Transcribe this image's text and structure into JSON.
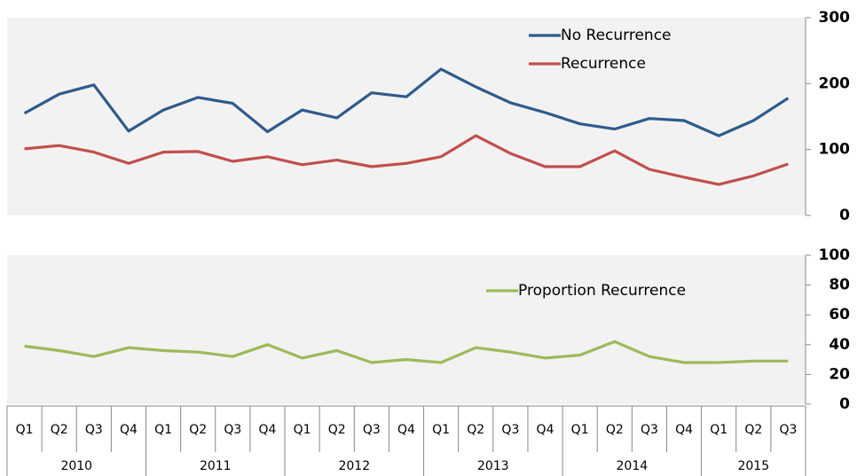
{
  "chart_data": [
    {
      "type": "line",
      "ylim": [
        0,
        300
      ],
      "yticks": [
        0,
        100,
        200,
        300
      ],
      "series": [
        {
          "name": "No Recurrence",
          "color": "#2f5b8c",
          "values": [
            155,
            184,
            198,
            128,
            160,
            179,
            170,
            127,
            160,
            148,
            186,
            180,
            222,
            195,
            171,
            156,
            139,
            131,
            147,
            144,
            121,
            144,
            178
          ]
        },
        {
          "name": "Recurrence",
          "color": "#c0504d",
          "values": [
            101,
            106,
            96,
            79,
            96,
            97,
            82,
            89,
            77,
            84,
            74,
            79,
            89,
            121,
            94,
            74,
            74,
            98,
            70,
            58,
            47,
            60,
            78
          ]
        }
      ]
    },
    {
      "type": "line",
      "ylim": [
        0,
        100
      ],
      "yticks": [
        0,
        20,
        40,
        60,
        80,
        100
      ],
      "categories": [
        "Q1",
        "Q2",
        "Q3",
        "Q4",
        "Q1",
        "Q2",
        "Q3",
        "Q4",
        "Q1",
        "Q2",
        "Q3",
        "Q4",
        "Q1",
        "Q2",
        "Q3",
        "Q4",
        "Q1",
        "Q2",
        "Q3",
        "Q4",
        "Q1",
        "Q2",
        "Q3"
      ],
      "category_groups": [
        "2010",
        "2011",
        "2012",
        "2013",
        "2014",
        "2015"
      ],
      "series": [
        {
          "name": "Proportion Recurrence",
          "color": "#9bbb59",
          "values": [
            39,
            36,
            32,
            38,
            36,
            35,
            32,
            40,
            31,
            36,
            28,
            30,
            28,
            38,
            35,
            31,
            33,
            42,
            32,
            28,
            28,
            29,
            29
          ]
        }
      ]
    }
  ]
}
